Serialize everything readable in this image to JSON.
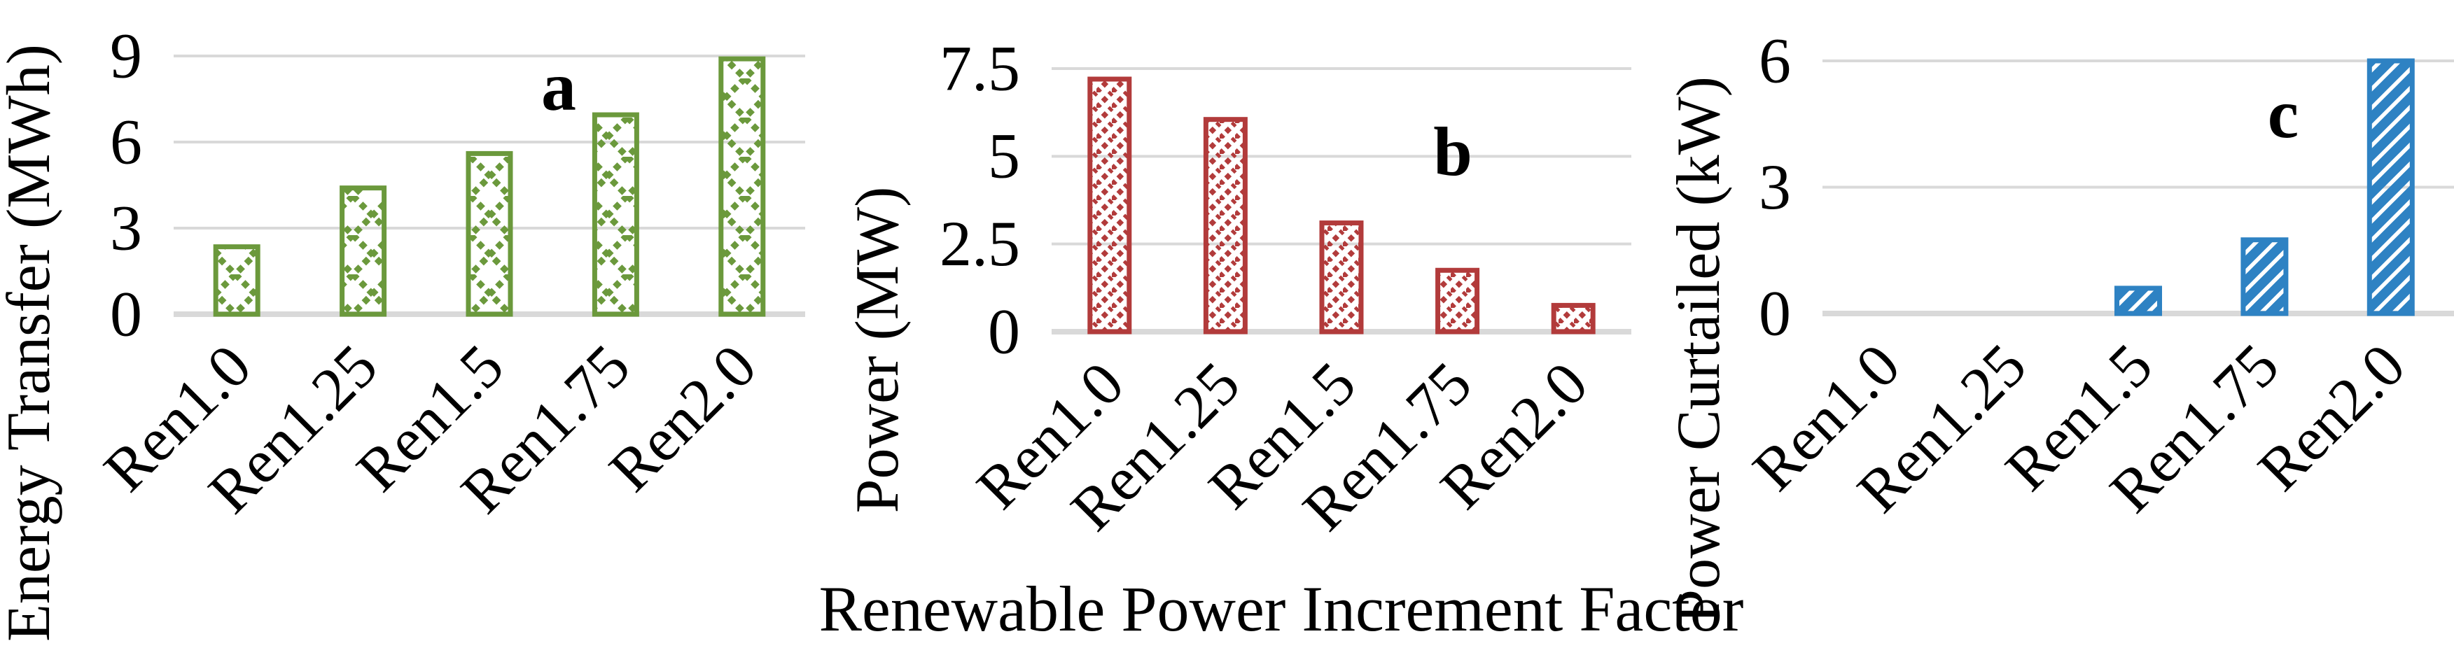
{
  "figure": {
    "x_axis_title": "Renewable Power Increment Factor",
    "categories": [
      "Ren1.0",
      "Ren1.25",
      "Ren1.5",
      "Ren1.75",
      "Ren2.0"
    ],
    "gridline_color": "#d9d9d9",
    "axis_line_color": "#d9d9d9",
    "panel_label_color": "#0070c0",
    "text_color": "#000000",
    "background_color": "#ffffff"
  },
  "chart_data": [
    {
      "type": "bar",
      "panel_label": "a",
      "title": "",
      "xlabel": "Renewable Power Increment Factor",
      "ylabel": "Energy Transfer (MWh)",
      "categories": [
        "Ren1.0",
        "Ren1.25",
        "Ren1.5",
        "Ren1.75",
        "Ren2.0"
      ],
      "values": [
        2.35,
        4.4,
        5.6,
        6.95,
        8.9
      ],
      "yticks": [
        0,
        3,
        6,
        9
      ],
      "ytick_labels": [
        "0",
        "3",
        "6",
        "9"
      ],
      "ylim": [
        0,
        9
      ],
      "grid": true,
      "legend": false,
      "bar_color": "#6b993c",
      "pattern": "diamond-crosshatch"
    },
    {
      "type": "bar",
      "panel_label": "b",
      "title": "",
      "xlabel": "Renewable Power Increment Factor",
      "ylabel": "Power (MW)",
      "categories": [
        "Ren1.0",
        "Ren1.25",
        "Ren1.5",
        "Ren1.75",
        "Ren2.0"
      ],
      "values": [
        7.2,
        6.05,
        3.1,
        1.75,
        0.75
      ],
      "yticks": [
        0,
        2.5,
        5,
        7.5
      ],
      "ytick_labels": [
        "0",
        "2.5",
        "5",
        "7.5"
      ],
      "ylim": [
        0,
        7.5
      ],
      "grid": true,
      "legend": false,
      "bar_color": "#b23b3b",
      "pattern": "thin-diagonal-dots"
    },
    {
      "type": "bar",
      "panel_label": "c",
      "title": "",
      "xlabel": "Renewable Power Increment Factor",
      "ylabel": "Power Curtailed (kW)",
      "categories": [
        "Ren1.0",
        "Ren1.25",
        "Ren1.5",
        "Ren1.75",
        "Ren2.0"
      ],
      "values": [
        0,
        0,
        0.6,
        1.75,
        6.0
      ],
      "yticks": [
        0,
        3,
        6
      ],
      "ytick_labels": [
        "0",
        "3",
        "6"
      ],
      "ylim": [
        0,
        6
      ],
      "grid": true,
      "legend": false,
      "bar_color": "#2e82c3",
      "pattern": "wide-diagonal-stripes"
    }
  ]
}
